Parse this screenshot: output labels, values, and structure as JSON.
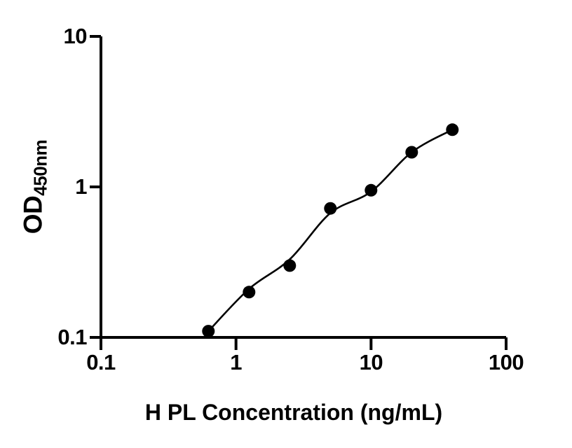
{
  "figure": {
    "background": "#ffffff"
  },
  "chart_data": {
    "type": "scatter",
    "title": "",
    "xlabel": "H PL Concentration (ng/mL)",
    "ylabel": "OD450nm",
    "ylabel_main": "OD",
    "ylabel_sub": "450nm",
    "x_scale": "log",
    "y_scale": "log",
    "xlim": [
      0.1,
      100
    ],
    "ylim": [
      0.1,
      10
    ],
    "grid": false,
    "legend": "none",
    "x_ticks": [
      {
        "value": 0.1,
        "label": "0.1"
      },
      {
        "value": 1,
        "label": "1"
      },
      {
        "value": 10,
        "label": "10"
      },
      {
        "value": 100,
        "label": "100"
      }
    ],
    "y_ticks": [
      {
        "value": 0.1,
        "label": "0.1"
      },
      {
        "value": 1,
        "label": "1"
      },
      {
        "value": 10,
        "label": "10"
      }
    ],
    "series": [
      {
        "name": "standard-data-points",
        "type": "scatter",
        "marker": "filled-circle",
        "x": [
          0.625,
          1.25,
          2.5,
          5,
          10,
          20,
          40
        ],
        "y": [
          0.11,
          0.2,
          0.3,
          0.72,
          0.95,
          1.7,
          2.4
        ]
      },
      {
        "name": "fitted-standard-curve",
        "type": "line",
        "x": [
          0.625,
          1.25,
          2.5,
          5,
          10,
          20,
          40
        ],
        "y": [
          0.11,
          0.21,
          0.33,
          0.67,
          0.93,
          1.7,
          2.4
        ]
      }
    ],
    "colors": {
      "points": "#000000",
      "curve": "#000000",
      "axes": "#000000",
      "text": "#000000",
      "background": "#ffffff"
    }
  }
}
